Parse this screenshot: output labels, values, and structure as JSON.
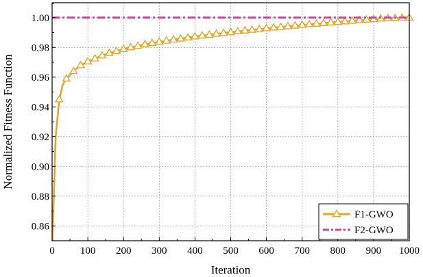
{
  "chart_data": {
    "type": "line",
    "title": "",
    "xlabel": "Iteration",
    "ylabel": "Normalized Fitness Function",
    "xlim": [
      0,
      1000
    ],
    "ylim": [
      0.85,
      1.01
    ],
    "xticks": [
      0,
      100,
      200,
      300,
      400,
      500,
      600,
      700,
      800,
      900,
      1000
    ],
    "yticks": [
      0.86,
      0.88,
      0.9,
      0.92,
      0.94,
      0.96,
      0.98,
      1.0
    ],
    "xtick_labels": [
      "0",
      "100",
      "200",
      "300",
      "400",
      "500",
      "600",
      "700",
      "800",
      "900",
      "1000"
    ],
    "ytick_labels": [
      "0.86",
      "0.88",
      "0.90",
      "0.92",
      "0.94",
      "0.96",
      "0.98",
      "1.00"
    ],
    "grid": true,
    "legend_position": "bottom-right",
    "series": [
      {
        "name": "F1-GWO",
        "color": "#E3A82B",
        "marker": "triangle-open",
        "line_style": "solid",
        "x": [
          1,
          10,
          20,
          30,
          40,
          60,
          80,
          100,
          120,
          140,
          160,
          180,
          200,
          220,
          240,
          260,
          280,
          300,
          320,
          340,
          360,
          380,
          400,
          420,
          440,
          460,
          480,
          500,
          520,
          540,
          560,
          580,
          600,
          620,
          640,
          660,
          680,
          700,
          720,
          740,
          760,
          780,
          800,
          820,
          840,
          860,
          880,
          900,
          920,
          940,
          960,
          980,
          1000
        ],
        "y": [
          0.85,
          0.92,
          0.945,
          0.955,
          0.959,
          0.964,
          0.968,
          0.9705,
          0.9725,
          0.9745,
          0.9762,
          0.9775,
          0.9788,
          0.98,
          0.981,
          0.982,
          0.9829,
          0.9837,
          0.9845,
          0.9852,
          0.9859,
          0.9866,
          0.9873,
          0.9879,
          0.9885,
          0.9891,
          0.9897,
          0.9902,
          0.9908,
          0.9913,
          0.9918,
          0.9923,
          0.9928,
          0.9933,
          0.9937,
          0.9942,
          0.9946,
          0.9951,
          0.9955,
          0.9959,
          0.9963,
          0.9967,
          0.9971,
          0.9975,
          0.9979,
          0.9982,
          0.9986,
          0.999,
          0.9993,
          0.9996,
          0.9998,
          0.9999,
          1.0
        ],
        "marker_x": [
          20,
          40,
          60,
          80,
          100,
          120,
          140,
          160,
          180,
          200,
          220,
          240,
          260,
          280,
          300,
          320,
          340,
          360,
          380,
          400,
          420,
          440,
          460,
          480,
          500,
          520,
          540,
          560,
          580,
          600,
          620,
          640,
          660,
          680,
          700,
          720,
          740,
          760,
          780,
          800,
          820,
          840,
          860,
          880,
          900,
          920,
          940,
          960,
          980,
          1000
        ]
      },
      {
        "name": "F2-GWO",
        "color": "#C2479B",
        "marker": "none",
        "line_style": "dash-dot",
        "x": [
          0,
          1000
        ],
        "y": [
          1.0,
          1.0
        ]
      }
    ]
  }
}
